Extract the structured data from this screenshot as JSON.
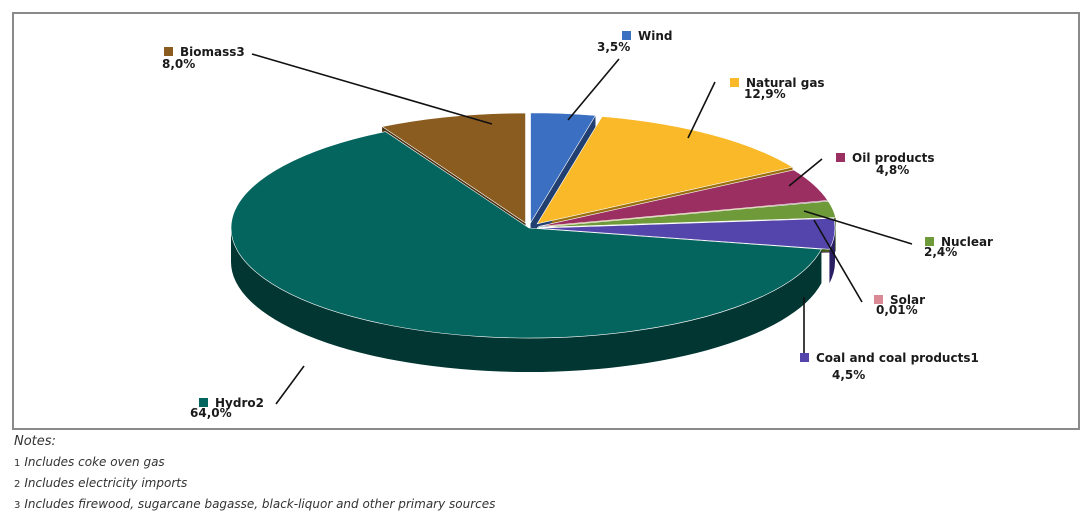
{
  "chart_data": {
    "type": "pie",
    "title": "",
    "slices": [
      {
        "label": "Wind",
        "value_label": "3,5%",
        "value": 3.5,
        "color": "#3a6fc2",
        "color_dark": "#223f72"
      },
      {
        "label": "Natural gas",
        "value_label": "12,9%",
        "value": 12.9,
        "color": "#f9b928",
        "color_dark": "#9b7110"
      },
      {
        "label": "Oil products",
        "value_label": "4,8%",
        "value": 4.8,
        "color": "#9b2f61",
        "color_dark": "#5a1a38"
      },
      {
        "label": "Nuclear",
        "value_label": "2,4%",
        "value": 2.4,
        "color": "#6e9a3a",
        "color_dark": "#3e5a1f"
      },
      {
        "label": "Solar",
        "value_label": "0,01%",
        "value": 0.01,
        "color": "#d98a94",
        "color_dark": "#8a4c54"
      },
      {
        "label": "Coal and coal products1",
        "value_label": "4,5%",
        "value": 4.5,
        "color": "#5445ac",
        "color_dark": "#2a1f62"
      },
      {
        "label": "Hydro2",
        "value_label": "64,0%",
        "value": 64.0,
        "color": "#04645e",
        "color_dark": "#023632"
      },
      {
        "label": "Biomass3",
        "value_label": "8,0%",
        "value": 8.0,
        "color": "#8a5c20",
        "color_dark": "#4a3010"
      }
    ],
    "legend": "labels-with-swatches"
  },
  "notes": {
    "title": "Notes:",
    "items": [
      {
        "num": "1",
        "text": "Includes coke oven gas"
      },
      {
        "num": "2",
        "text": "Includes electricity imports"
      },
      {
        "num": "3",
        "text": "Includes firewood, sugarcane bagasse, black-liquor and other primary sources"
      }
    ]
  }
}
